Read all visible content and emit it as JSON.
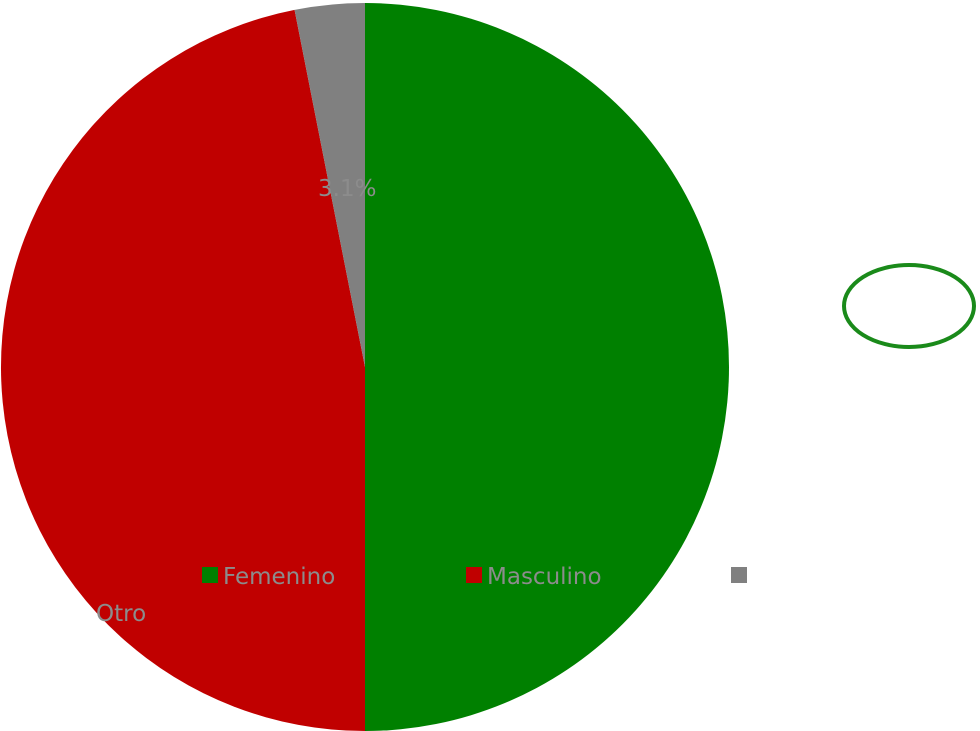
{
  "chart_data": {
    "type": "pie",
    "slices": [
      {
        "name": "Femenino",
        "value": 50.0,
        "color": "#008000"
      },
      {
        "name": "Masculino",
        "value": 46.9,
        "color": "#c00000"
      },
      {
        "name": "Otro",
        "value": 3.1,
        "color": "#808080"
      }
    ],
    "data_label_partial": "3.1%",
    "legend": {
      "position": "overlay-bottom"
    },
    "label_color": "#8c8c8c",
    "annotation": {
      "shape": "ellipse",
      "color": "#1a8a1a"
    }
  }
}
